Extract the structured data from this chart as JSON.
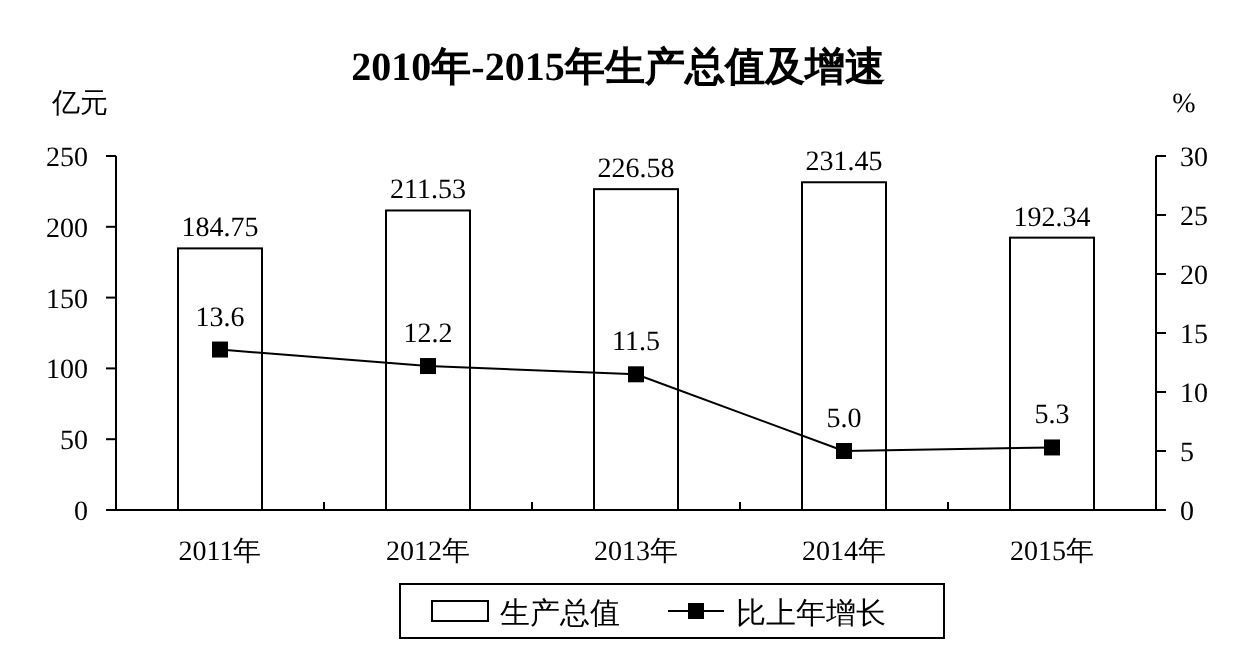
{
  "chart_data": {
    "type": "bar",
    "title": "2010年-2015年生产总值及增速",
    "categories": [
      "2011年",
      "2012年",
      "2013年",
      "2014年",
      "2015年"
    ],
    "ylabel": "亿元",
    "y2label": "%",
    "ylim": [
      0,
      250
    ],
    "yticks": [
      0,
      50,
      100,
      150,
      200,
      250
    ],
    "y2lim": [
      0,
      30
    ],
    "y2ticks": [
      0,
      5,
      10,
      15,
      20,
      25,
      30
    ],
    "series": [
      {
        "name": "生产总值",
        "color": "#ffffff",
        "values": [
          184.75,
          211.53,
          226.58,
          231.45,
          192.34
        ],
        "value_labels": [
          "184.75",
          "211.53",
          "226.58",
          "231.45",
          "192.34"
        ]
      },
      {
        "name": "比上年增长",
        "type": "line",
        "axis": "y2",
        "color": "#000000",
        "marker": "square",
        "values": [
          13.6,
          12.2,
          11.5,
          5.0,
          5.3
        ],
        "value_labels": [
          "13.6",
          "12.2",
          "11.5",
          "5.0",
          "5.3"
        ]
      }
    ],
    "legend": "bottom"
  }
}
